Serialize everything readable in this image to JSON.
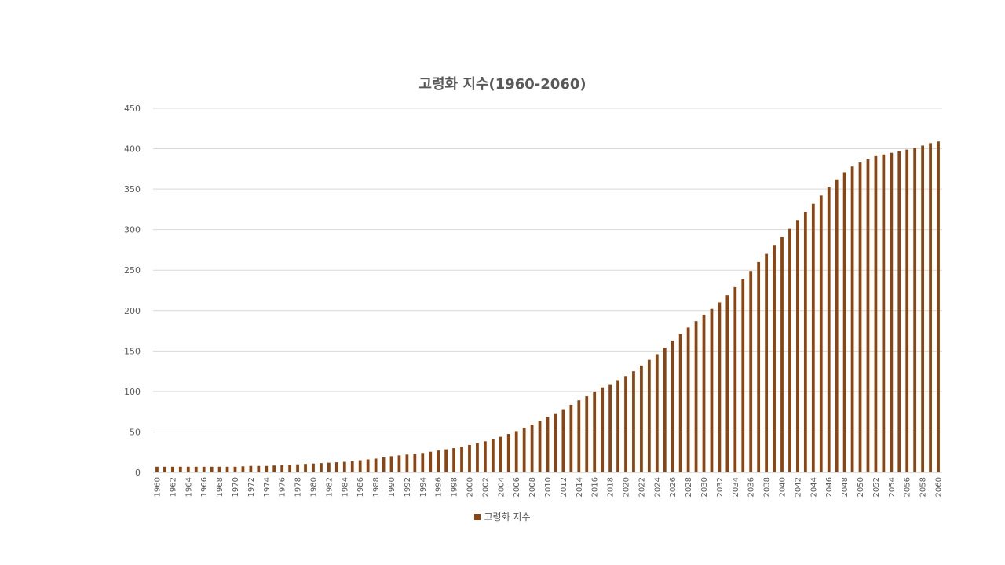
{
  "chart_data": {
    "type": "bar",
    "title": "고령화 지수(1960-2060)",
    "xlabel": "",
    "ylabel": "",
    "ylim": [
      0,
      450
    ],
    "yticks": [
      "0",
      "50",
      "100",
      "150",
      "200",
      "250",
      "300",
      "350",
      "400",
      "450"
    ],
    "grid": true,
    "legend_position": "bottom",
    "bar_color": "#8B4513",
    "categories": [
      1960,
      1961,
      1962,
      1963,
      1964,
      1965,
      1966,
      1967,
      1968,
      1969,
      1970,
      1971,
      1972,
      1973,
      1974,
      1975,
      1976,
      1977,
      1978,
      1979,
      1980,
      1981,
      1982,
      1983,
      1984,
      1985,
      1986,
      1987,
      1988,
      1989,
      1990,
      1991,
      1992,
      1993,
      1994,
      1995,
      1996,
      1997,
      1998,
      1999,
      2000,
      2001,
      2002,
      2003,
      2004,
      2005,
      2006,
      2007,
      2008,
      2009,
      2010,
      2011,
      2012,
      2013,
      2014,
      2015,
      2016,
      2017,
      2018,
      2019,
      2020,
      2021,
      2022,
      2023,
      2024,
      2025,
      2026,
      2027,
      2028,
      2029,
      2030,
      2031,
      2032,
      2033,
      2034,
      2035,
      2036,
      2037,
      2038,
      2039,
      2040,
      2041,
      2042,
      2043,
      2044,
      2045,
      2046,
      2047,
      2048,
      2049,
      2050,
      2051,
      2052,
      2053,
      2054,
      2055,
      2056,
      2057,
      2058,
      2059,
      2060
    ],
    "x_tick_labels": [
      "1960",
      "1962",
      "1964",
      "1966",
      "1968",
      "1970",
      "1972",
      "1974",
      "1976",
      "1978",
      "1980",
      "1982",
      "1984",
      "1986",
      "1988",
      "1990",
      "1992",
      "1994",
      "1996",
      "1998",
      "2000",
      "2002",
      "2004",
      "2006",
      "2008",
      "2010",
      "2012",
      "2014",
      "2016",
      "2018",
      "2020",
      "2022",
      "2024",
      "2026",
      "2028",
      "2030",
      "2032",
      "2034",
      "2036",
      "2038",
      "2040",
      "2042",
      "2044",
      "2046",
      "2048",
      "2050",
      "2052",
      "2054",
      "2056",
      "2058",
      "2060"
    ],
    "series": [
      {
        "name": "고령화 지수",
        "values": [
          7,
          7,
          7,
          7,
          7,
          7,
          7,
          7,
          7,
          7,
          7,
          7.5,
          8,
          8,
          8,
          8.5,
          9,
          9.5,
          10,
          10.5,
          11,
          11.5,
          12,
          12.5,
          13,
          14,
          15,
          16,
          17,
          18.5,
          20,
          21,
          22,
          23,
          24,
          25.5,
          27,
          28.5,
          30,
          32,
          34,
          36,
          38.5,
          41,
          44,
          47.5,
          51,
          55,
          59,
          64,
          68.5,
          73,
          78,
          83.5,
          89,
          94,
          100,
          105,
          109,
          114,
          119,
          125,
          132,
          139,
          146,
          154,
          163,
          171,
          179,
          187,
          195,
          202,
          210,
          219,
          229,
          239,
          249,
          260,
          270,
          281,
          291,
          301,
          312,
          322,
          332,
          342,
          353,
          362,
          371,
          378,
          383,
          387,
          391,
          393,
          395,
          397,
          399,
          401,
          404,
          407,
          409
        ]
      }
    ]
  },
  "legend": {
    "label": "고령화 지수"
  }
}
